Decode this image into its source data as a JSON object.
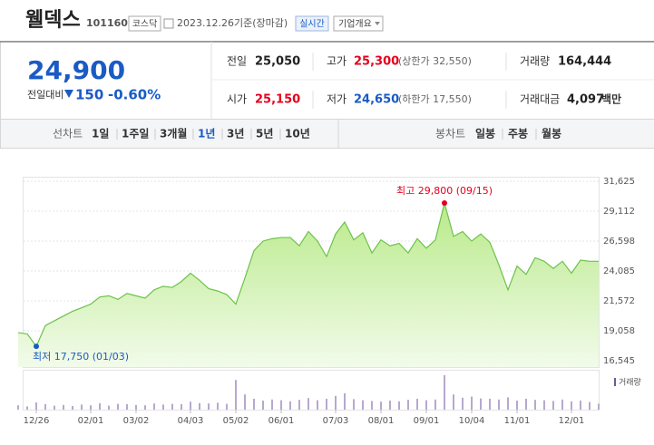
{
  "header": {
    "name": "웰덱스",
    "code": "101160",
    "market": "코스닥",
    "date": "2023.12.26",
    "basis": "기준(장마감)",
    "realtime": "실시간",
    "company": "기업개요"
  },
  "quote": {
    "price": "24,900",
    "change_label": "전일대비",
    "change": "150",
    "change_rate": "-0.60%",
    "cells": [
      {
        "label": "전일",
        "value": "25,050"
      },
      {
        "label": "고가",
        "value": "25,300",
        "note": "(상한가 32,550)"
      },
      {
        "label": "거래량",
        "value": "164,444"
      },
      {
        "label": "시가",
        "value": "25,150"
      },
      {
        "label": "저가",
        "value": "24,650",
        "note": "(하한가 17,550)"
      },
      {
        "label": "거래대금",
        "value": "4,097",
        "unit": "백만"
      }
    ]
  },
  "tabs": {
    "line_label": "선차트",
    "line_periods": [
      "1일",
      "1주일",
      "3개월",
      "1년",
      "3년",
      "5년",
      "10년"
    ],
    "selected": 3,
    "candle_label": "봉차트",
    "candle_periods": [
      "일봉",
      "주봉",
      "월봉"
    ]
  },
  "chart_data": {
    "type": "area",
    "color": "#6cc24a",
    "categories": [
      null,
      null,
      "12/26",
      null,
      null,
      null,
      null,
      null,
      "02/01",
      null,
      null,
      null,
      null,
      "03/02",
      null,
      null,
      null,
      null,
      null,
      "04/03",
      null,
      null,
      null,
      null,
      "05/02",
      null,
      null,
      null,
      null,
      "06/01",
      null,
      null,
      null,
      null,
      null,
      "07/03",
      null,
      null,
      null,
      null,
      "08/01",
      null,
      null,
      null,
      null,
      "09/01",
      null,
      null,
      null,
      null,
      "10/04",
      null,
      null,
      null,
      null,
      "11/01",
      null,
      null,
      null,
      null,
      null,
      "12/01",
      null,
      null,
      null
    ],
    "values": [
      18900,
      18800,
      17750,
      19500,
      19900,
      20300,
      20700,
      21000,
      21300,
      21900,
      22000,
      21700,
      22200,
      22000,
      21800,
      22500,
      22800,
      22700,
      23200,
      23900,
      23300,
      22600,
      22400,
      22100,
      21300,
      23500,
      25800,
      26600,
      26800,
      26900,
      26900,
      26200,
      27400,
      26600,
      25300,
      27200,
      28200,
      26700,
      27300,
      25600,
      26700,
      26200,
      26400,
      25600,
      26800,
      26000,
      26700,
      29800,
      27000,
      27400,
      26600,
      27200,
      26500,
      24600,
      22500,
      24500,
      23800,
      25200,
      24900,
      24300,
      24900,
      23900,
      25000,
      24900,
      24900
    ],
    "ylim": [
      16545,
      31625
    ],
    "yticks": [
      {
        "value": 16545,
        "label": "16,545"
      },
      {
        "value": 19058,
        "label": "19,058"
      },
      {
        "value": 21572,
        "label": "21,572"
      },
      {
        "value": 24085,
        "label": "24,085"
      },
      {
        "value": 26598,
        "label": "26,598"
      },
      {
        "value": 29112,
        "label": "29,112"
      },
      {
        "value": 31625,
        "label": "31,625"
      }
    ],
    "grid": true,
    "annotations": [
      {
        "text": "최고 29,800 (09/15)",
        "kind": "max",
        "color": "#e5001c"
      },
      {
        "text": "최저 17,750 (01/03)",
        "kind": "min",
        "color": "#1a5bc4"
      }
    ],
    "volume": {
      "name": "거래량",
      "color": "#b7a8cf",
      "values": [
        120000,
        90000,
        200000,
        150000,
        110000,
        130000,
        100000,
        140000,
        120000,
        180000,
        110000,
        160000,
        150000,
        130000,
        120000,
        170000,
        140000,
        160000,
        150000,
        220000,
        180000,
        170000,
        190000,
        160000,
        820000,
        420000,
        300000,
        250000,
        280000,
        260000,
        230000,
        270000,
        320000,
        260000,
        300000,
        380000,
        450000,
        290000,
        260000,
        240000,
        220000,
        250000,
        230000,
        270000,
        300000,
        260000,
        280000,
        950000,
        420000,
        330000,
        360000,
        310000,
        300000,
        280000,
        340000,
        250000,
        300000,
        270000,
        260000,
        240000,
        280000,
        230000,
        250000,
        210000,
        164444
      ]
    }
  }
}
